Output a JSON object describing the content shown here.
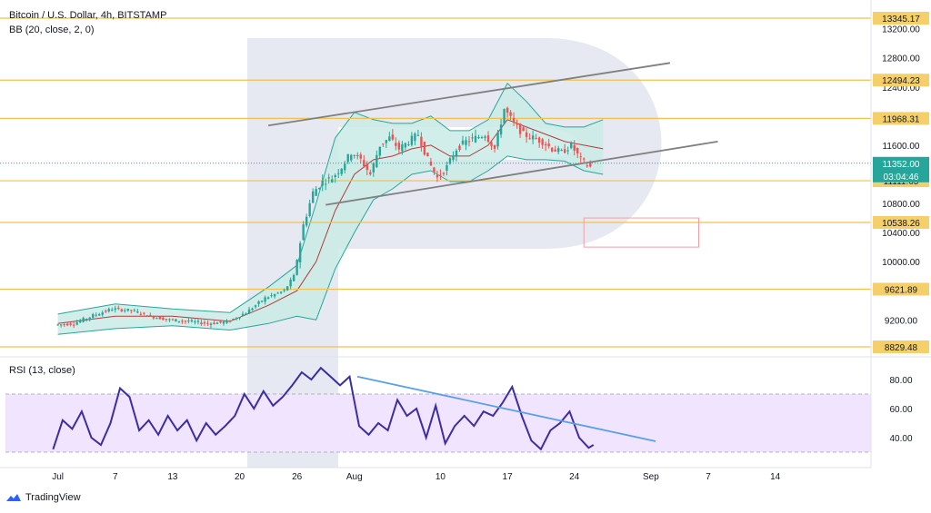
{
  "header": {
    "title": "Bitcoin / U.S. Dollar, 4h, BITSTAMP",
    "indicator": "BB (20, close, 2, 0)",
    "rsi_label": "RSI (13, close)"
  },
  "brand": {
    "name": "TradingView",
    "icon": "tradingview-logo-icon"
  },
  "colors": {
    "accent_orange": "#f2c14e",
    "price_label_bg": "#f5d06a",
    "current_price_bg": "#26a69a",
    "bb_fill": "#c9ebe6",
    "bb_band": "#26a69a",
    "bb_basis": "#b23c3c",
    "candle_up": "#26a69a",
    "candle_down": "#ef5350",
    "channel": "#808080",
    "rsi_line": "#3c2ea0",
    "rsi_band": "#f1e4ff",
    "rsi_trend": "#5aa0e6",
    "target_box": "#f3a0a8"
  },
  "chart_data": [
    {
      "type": "candlestick",
      "title": "Bitcoin / U.S. Dollar, 4h, BITSTAMP",
      "ylim": [
        8780,
        13500
      ],
      "y_ticks": [
        "13200.00",
        "12800.00",
        "12400.00",
        "11600.00",
        "10800.00",
        "10400.00",
        "10000.00",
        "9200.00"
      ],
      "x_ticks": [
        "Jul",
        "7",
        "13",
        "20",
        "26",
        "Aug",
        "10",
        "17",
        "24",
        "Sep",
        "7",
        "14"
      ],
      "x_tick_days": [
        1,
        7,
        13,
        20,
        26,
        32,
        41,
        48,
        55,
        63,
        69,
        76
      ],
      "price_levels": [
        {
          "value": 13345.17,
          "label": "13345.17"
        },
        {
          "value": 12494.23,
          "label": "12494.23"
        },
        {
          "value": 11968.31,
          "label": "11968.31"
        },
        {
          "value": 11111.65,
          "label": "11111.65"
        },
        {
          "value": 10538.26,
          "label": "10538.26"
        },
        {
          "value": 9621.89,
          "label": "9621.89"
        },
        {
          "value": 8829.48,
          "label": "8829.48"
        }
      ],
      "current_price": {
        "value": 11352.0,
        "label": "11352.00",
        "countdown": "03:04:46"
      },
      "close_path": [
        [
          1,
          9130
        ],
        [
          3,
          9150
        ],
        [
          5,
          9260
        ],
        [
          7,
          9350
        ],
        [
          9,
          9330
        ],
        [
          11,
          9250
        ],
        [
          13,
          9200
        ],
        [
          15,
          9180
        ],
        [
          17,
          9150
        ],
        [
          19,
          9170
        ],
        [
          21,
          9300
        ],
        [
          23,
          9500
        ],
        [
          25,
          9600
        ],
        [
          26,
          9800
        ],
        [
          27,
          10500
        ],
        [
          28,
          10950
        ],
        [
          29,
          11100
        ],
        [
          30,
          11150
        ],
        [
          31,
          11300
        ],
        [
          32,
          11500
        ],
        [
          33,
          11400
        ],
        [
          34,
          11200
        ],
        [
          35,
          11600
        ],
        [
          36,
          11700
        ],
        [
          37,
          11550
        ],
        [
          38,
          11650
        ],
        [
          39,
          11750
        ],
        [
          40,
          11400
        ],
        [
          41,
          11150
        ],
        [
          42,
          11300
        ],
        [
          43,
          11550
        ],
        [
          44,
          11650
        ],
        [
          45,
          11700
        ],
        [
          46,
          11750
        ],
        [
          47,
          11550
        ],
        [
          48,
          12100
        ],
        [
          49,
          11900
        ],
        [
          50,
          11750
        ],
        [
          51,
          11700
        ],
        [
          52,
          11650
        ],
        [
          53,
          11550
        ],
        [
          54,
          11500
        ],
        [
          55,
          11600
        ],
        [
          56,
          11400
        ],
        [
          57,
          11300
        ]
      ],
      "bollinger": {
        "upper": [
          [
            1,
            9280
          ],
          [
            7,
            9420
          ],
          [
            13,
            9350
          ],
          [
            19,
            9300
          ],
          [
            23,
            9650
          ],
          [
            26,
            9950
          ],
          [
            28,
            10800
          ],
          [
            30,
            11700
          ],
          [
            32,
            12050
          ],
          [
            34,
            11950
          ],
          [
            36,
            11900
          ],
          [
            38,
            11900
          ],
          [
            40,
            12000
          ],
          [
            42,
            11800
          ],
          [
            44,
            11800
          ],
          [
            46,
            11950
          ],
          [
            48,
            12450
          ],
          [
            50,
            12200
          ],
          [
            52,
            11900
          ],
          [
            54,
            11850
          ],
          [
            56,
            11850
          ],
          [
            58,
            11950
          ]
        ],
        "basis": [
          [
            1,
            9150
          ],
          [
            7,
            9250
          ],
          [
            13,
            9250
          ],
          [
            19,
            9180
          ],
          [
            23,
            9400
          ],
          [
            26,
            9600
          ],
          [
            28,
            10000
          ],
          [
            30,
            10700
          ],
          [
            32,
            11200
          ],
          [
            34,
            11400
          ],
          [
            36,
            11450
          ],
          [
            38,
            11550
          ],
          [
            40,
            11600
          ],
          [
            42,
            11450
          ],
          [
            44,
            11450
          ],
          [
            46,
            11600
          ],
          [
            48,
            11950
          ],
          [
            50,
            11850
          ],
          [
            52,
            11750
          ],
          [
            54,
            11650
          ],
          [
            56,
            11600
          ],
          [
            58,
            11550
          ]
        ],
        "lower": [
          [
            1,
            9000
          ],
          [
            7,
            9080
          ],
          [
            13,
            9120
          ],
          [
            19,
            9060
          ],
          [
            23,
            9150
          ],
          [
            26,
            9250
          ],
          [
            28,
            9200
          ],
          [
            30,
            9900
          ],
          [
            32,
            10400
          ],
          [
            34,
            10850
          ],
          [
            36,
            11000
          ],
          [
            38,
            11200
          ],
          [
            40,
            11250
          ],
          [
            42,
            11100
          ],
          [
            44,
            11100
          ],
          [
            46,
            11250
          ],
          [
            48,
            11450
          ],
          [
            50,
            11400
          ],
          [
            52,
            11400
          ],
          [
            54,
            11380
          ],
          [
            56,
            11250
          ],
          [
            58,
            11200
          ]
        ]
      },
      "channel_lines": [
        {
          "from": [
            23,
            11870
          ],
          "to": [
            65,
            12730
          ]
        },
        {
          "from": [
            29,
            10780
          ],
          "to": [
            70,
            11650
          ]
        }
      ],
      "target_box": {
        "day_from": 56,
        "day_to": 68,
        "price_from": 10200,
        "price_to": 10600
      }
    },
    {
      "type": "line",
      "title": "RSI (13, close)",
      "ylim": [
        20,
        92
      ],
      "y_ticks": [
        "80.00",
        "60.00",
        "40.00"
      ],
      "band": [
        30,
        70
      ],
      "series": [
        {
          "values": [
            [
              0.5,
              32
            ],
            [
              1.5,
              52
            ],
            [
              2.5,
              46
            ],
            [
              3.5,
              58
            ],
            [
              4.5,
              40
            ],
            [
              5.5,
              35
            ],
            [
              6.5,
              50
            ],
            [
              7.5,
              74
            ],
            [
              8.5,
              68
            ],
            [
              9.5,
              45
            ],
            [
              10.5,
              52
            ],
            [
              11.5,
              42
            ],
            [
              12.5,
              55
            ],
            [
              13.5,
              45
            ],
            [
              14.5,
              52
            ],
            [
              15.5,
              38
            ],
            [
              16.5,
              50
            ],
            [
              17.5,
              42
            ],
            [
              18.5,
              48
            ],
            [
              19.5,
              55
            ],
            [
              20.5,
              70
            ],
            [
              21.5,
              60
            ],
            [
              22.5,
              72
            ],
            [
              23.5,
              62
            ],
            [
              24.5,
              68
            ],
            [
              25.5,
              76
            ],
            [
              26.5,
              85
            ],
            [
              27.5,
              80
            ],
            [
              28.5,
              88
            ],
            [
              29.5,
              82
            ],
            [
              30.5,
              76
            ],
            [
              31.5,
              82
            ],
            [
              32.5,
              48
            ],
            [
              33.5,
              42
            ],
            [
              34.5,
              50
            ],
            [
              35.5,
              45
            ],
            [
              36.5,
              66
            ],
            [
              37.5,
              55
            ],
            [
              38.5,
              60
            ],
            [
              39.5,
              40
            ],
            [
              40.5,
              62
            ],
            [
              41.5,
              36
            ],
            [
              42.5,
              48
            ],
            [
              43.5,
              55
            ],
            [
              44.5,
              48
            ],
            [
              45.5,
              58
            ],
            [
              46.5,
              55
            ],
            [
              47.5,
              64
            ],
            [
              48.5,
              75
            ],
            [
              49.5,
              55
            ],
            [
              50.5,
              38
            ],
            [
              51.5,
              32
            ],
            [
              52.5,
              45
            ],
            [
              53.5,
              50
            ],
            [
              54.5,
              58
            ],
            [
              55.5,
              40
            ],
            [
              56.5,
              33
            ],
            [
              57.0,
              35
            ]
          ]
        }
      ],
      "trend_line": {
        "from": [
          32.3,
          82
        ],
        "to": [
          63.5,
          37.5
        ]
      }
    }
  ]
}
